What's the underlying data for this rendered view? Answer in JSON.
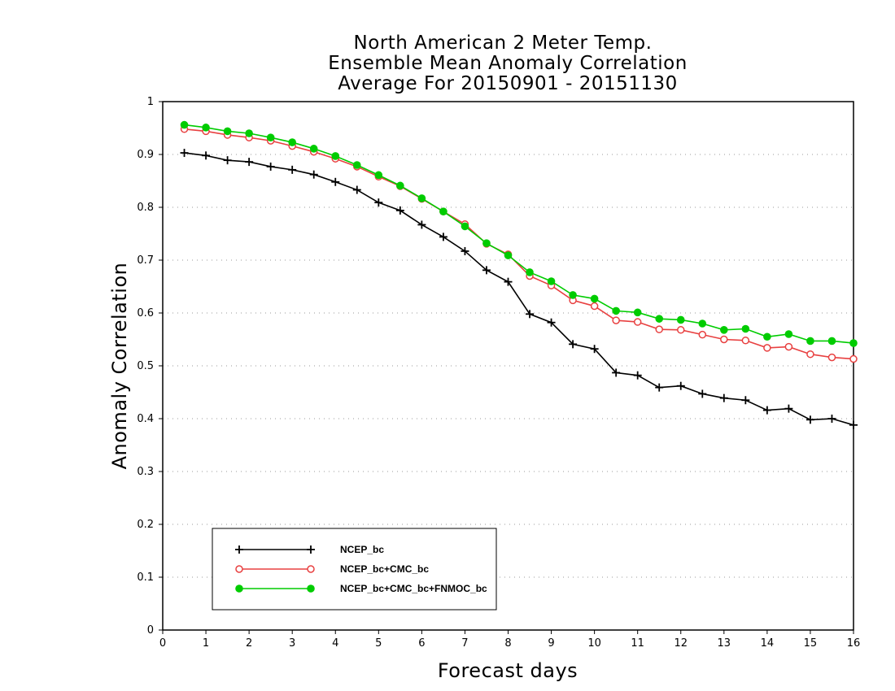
{
  "chart_data": {
    "type": "line",
    "title_lines": [
      "North American 2 Meter Temp.",
      "Ensemble Mean Anomaly Correlation",
      "Average For 20150901 - 20151130"
    ],
    "xlabel": "Forecast days",
    "ylabel": "Anomaly Correlation",
    "xlim": [
      0,
      16
    ],
    "ylim": [
      0,
      1
    ],
    "x_ticks": [
      "0",
      "1",
      "2",
      "3",
      "4",
      "5",
      "6",
      "7",
      "8",
      "9",
      "10",
      "11",
      "12",
      "13",
      "14",
      "15",
      "16"
    ],
    "y_ticks": [
      "0",
      "0.1",
      "0.2",
      "0.3",
      "0.4",
      "0.5",
      "0.6",
      "0.7",
      "0.8",
      "0.9",
      "1"
    ],
    "grid": "horizontal dotted",
    "legend_position": "bottom-left",
    "x": [
      0.5,
      1,
      1.5,
      2,
      2.5,
      3,
      3.5,
      4,
      4.5,
      5,
      5.5,
      6,
      6.5,
      7,
      7.5,
      8,
      8.5,
      9,
      9.5,
      10,
      10.5,
      11,
      11.5,
      12,
      12.5,
      13,
      13.5,
      14,
      14.5,
      15,
      15.5,
      16
    ],
    "series": [
      {
        "name": "NCEP_bc",
        "color": "#000000",
        "marker": "plus",
        "values": [
          0.903,
          0.898,
          0.889,
          0.886,
          0.877,
          0.871,
          0.862,
          0.848,
          0.833,
          0.809,
          0.794,
          0.767,
          0.744,
          0.717,
          0.681,
          0.659,
          0.598,
          0.582,
          0.541,
          0.532,
          0.487,
          0.482,
          0.459,
          0.462,
          0.447,
          0.439,
          0.435,
          0.416,
          0.419,
          0.398,
          0.4,
          0.388
        ]
      },
      {
        "name": "NCEP_bc+CMC_bc",
        "color": "#e84040",
        "marker": "open-circle",
        "values": [
          0.948,
          0.944,
          0.937,
          0.932,
          0.926,
          0.916,
          0.905,
          0.892,
          0.877,
          0.858,
          0.84,
          0.816,
          0.792,
          0.768,
          0.731,
          0.711,
          0.67,
          0.652,
          0.624,
          0.613,
          0.586,
          0.583,
          0.569,
          0.568,
          0.559,
          0.55,
          0.548,
          0.534,
          0.536,
          0.522,
          0.516,
          0.513
        ]
      },
      {
        "name": "NCEP_bc+CMC_bc+FNMOC_bc",
        "color": "#00cc00",
        "marker": "filled-circle",
        "values": [
          0.956,
          0.951,
          0.944,
          0.94,
          0.932,
          0.923,
          0.911,
          0.897,
          0.88,
          0.861,
          0.841,
          0.817,
          0.792,
          0.764,
          0.732,
          0.709,
          0.677,
          0.66,
          0.634,
          0.627,
          0.604,
          0.601,
          0.589,
          0.587,
          0.58,
          0.568,
          0.57,
          0.555,
          0.56,
          0.547,
          0.547,
          0.543
        ]
      }
    ]
  }
}
